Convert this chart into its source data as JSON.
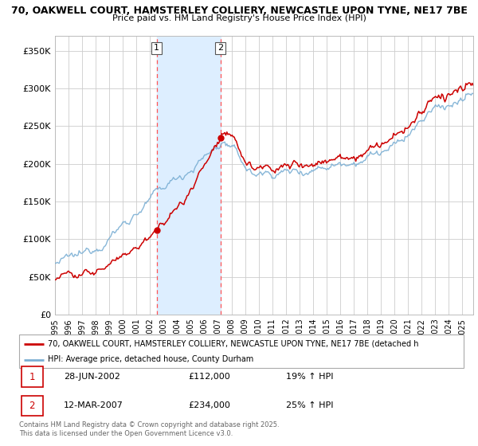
{
  "title_line1": "70, OAKWELL COURT, HAMSTERLEY COLLIERY, NEWCASTLE UPON TYNE, NE17 7BE",
  "title_line2": "Price paid vs. HM Land Registry's House Price Index (HPI)",
  "ylabel_ticks": [
    "£0",
    "£50K",
    "£100K",
    "£150K",
    "£200K",
    "£250K",
    "£300K",
    "£350K"
  ],
  "ytick_values": [
    0,
    50000,
    100000,
    150000,
    200000,
    250000,
    300000,
    350000
  ],
  "ylim": [
    0,
    370000
  ],
  "xlim_start": 1995.0,
  "xlim_end": 2025.8,
  "background_color": "#ffffff",
  "grid_color": "#cccccc",
  "red_line_color": "#cc0000",
  "blue_line_color": "#7bafd4",
  "shade_color": "#ddeeff",
  "dashed_color": "#ff5555",
  "transaction1": {
    "date_float": 2002.49,
    "price": 112000,
    "label": "1",
    "date_str": "28-JUN-2002",
    "pct": "19%"
  },
  "transaction2": {
    "date_float": 2007.19,
    "price": 234000,
    "label": "2",
    "date_str": "12-MAR-2007",
    "pct": "25%"
  },
  "legend_red": "70, OAKWELL COURT, HAMSTERLEY COLLIERY, NEWCASTLE UPON TYNE, NE17 7BE (detached h",
  "legend_blue": "HPI: Average price, detached house, County Durham",
  "footer": "Contains HM Land Registry data © Crown copyright and database right 2025.\nThis data is licensed under the Open Government Licence v3.0.",
  "table_row1": [
    "1",
    "28-JUN-2002",
    "£112,000",
    "19% ↑ HPI"
  ],
  "table_row2": [
    "2",
    "12-MAR-2007",
    "£234,000",
    "25% ↑ HPI"
  ]
}
